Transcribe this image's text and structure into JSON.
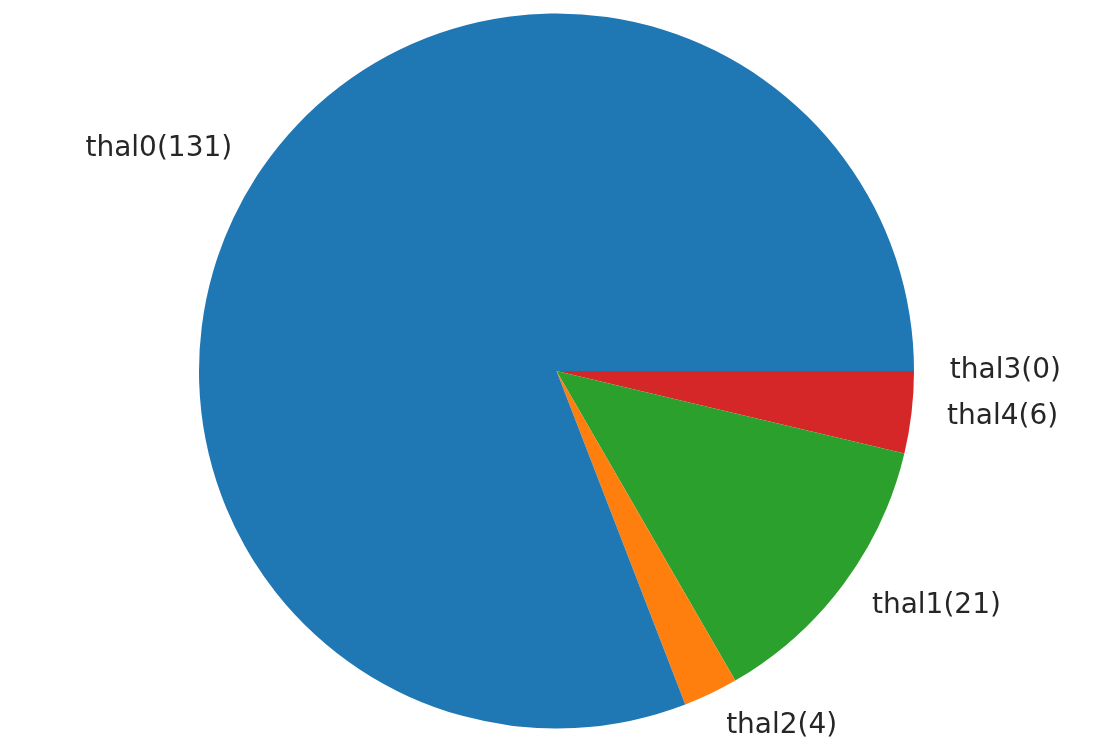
{
  "chart_data": {
    "type": "pie",
    "categories": [
      "thal0(131)",
      "thal2(4)",
      "thal1(21)",
      "thal4(6)",
      "thal3(0)"
    ],
    "values": [
      131,
      4,
      21,
      6,
      0
    ],
    "colors": [
      "#1f77b4",
      "#ff7f0e",
      "#2ca02c",
      "#d62728",
      "#9467bd"
    ],
    "legend": false
  }
}
